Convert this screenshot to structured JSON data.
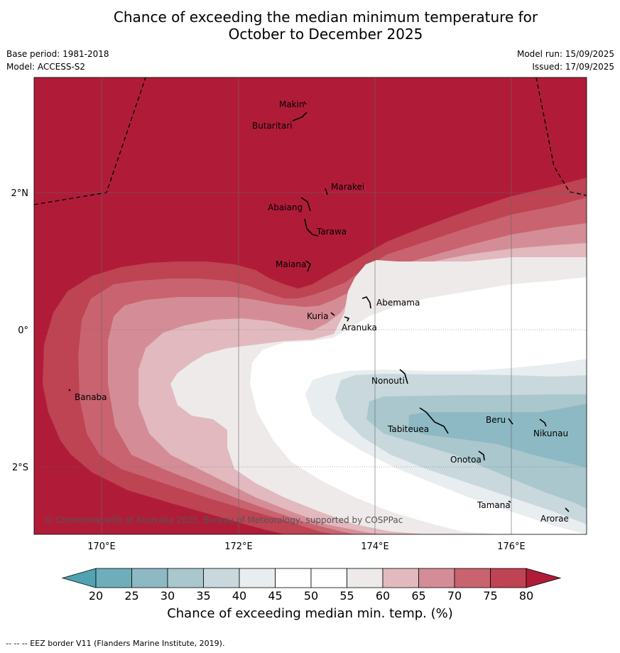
{
  "header": {
    "title_line1": "Chance of exceeding the median minimum temperature for",
    "title_line2": "October to December 2025",
    "base_period": "Base period: 1981-2018",
    "model": "Model: ACCESS-S2",
    "model_run": "Model run: 15/09/2025",
    "issued": "Issued: 17/09/2025"
  },
  "map": {
    "lon_ticks": [
      "170°E",
      "172°E",
      "174°E",
      "176°E"
    ],
    "lat_ticks": [
      "2°N",
      "0°",
      "2°S"
    ],
    "places": [
      "Makin",
      "Butaritari",
      "Marakei",
      "Abaiang",
      "Tarawa",
      "Maiana",
      "Abemama",
      "Kuria",
      "Aranuka",
      "Banaba",
      "Nonouti",
      "Beru",
      "Tabiteuea",
      "Nikunau",
      "Onotoa",
      "Tamana",
      "Arorae"
    ],
    "copyright": "© Commonwealth of Australia 2025, Bureau of Meteorology, supported by COSPPac",
    "eez_border_style": "dashed black"
  },
  "colorbar": {
    "ticks": [
      "20",
      "25",
      "30",
      "35",
      "40",
      "45",
      "50",
      "55",
      "60",
      "65",
      "70",
      "75",
      "80"
    ],
    "colors": [
      "#52a2b2",
      "#6eaebb",
      "#8db9c4",
      "#a9c7cd",
      "#c8d8dd",
      "#e8edf0",
      "#ffffff",
      "#ffffff",
      "#eeeae9",
      "#e1b9be",
      "#d48d96",
      "#c9636f",
      "#be4353",
      "#b01c38"
    ],
    "label": "Chance of exceeding median min. temp. (%)"
  },
  "footer": "--  --  -- EEZ border V11 (Flanders Marine Institute, 2019)."
}
